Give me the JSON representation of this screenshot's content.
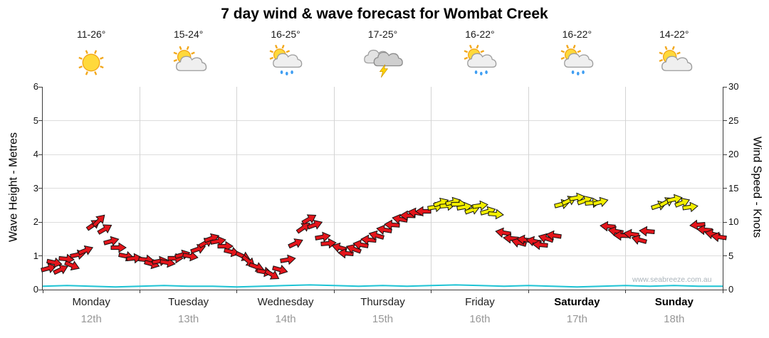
{
  "title": "7 day wind & wave forecast for Wombat Creek",
  "watermark": "www.seabreeze.com.au",
  "axes": {
    "left_label": "Wave Height - Metres",
    "right_label": "Wind Speed - Knots",
    "left_ticks": [
      0,
      1,
      2,
      3,
      4,
      5,
      6
    ],
    "right_ticks": [
      0,
      5,
      10,
      15,
      20,
      25,
      30
    ],
    "left_max": 6,
    "right_max": 30
  },
  "days": [
    {
      "name": "Monday",
      "date": "12th",
      "temp": "11-26°",
      "icon": "sunny",
      "weekend": false
    },
    {
      "name": "Tuesday",
      "date": "13th",
      "temp": "15-24°",
      "icon": "partly-cloudy",
      "weekend": false
    },
    {
      "name": "Wednesday",
      "date": "14th",
      "temp": "16-25°",
      "icon": "sun-cloud-rain",
      "weekend": false
    },
    {
      "name": "Thursday",
      "date": "15th",
      "temp": "17-25°",
      "icon": "thunderstorm",
      "weekend": false
    },
    {
      "name": "Friday",
      "date": "16th",
      "temp": "16-22°",
      "icon": "sun-cloud-rain",
      "weekend": false
    },
    {
      "name": "Saturday",
      "date": "17th",
      "temp": "16-22°",
      "icon": "sun-cloud-rain",
      "weekend": true
    },
    {
      "name": "Sunday",
      "date": "18th",
      "temp": "14-22°",
      "icon": "partly-cloudy",
      "weekend": true
    }
  ],
  "chart_data": {
    "type": "scatter",
    "title": "7 day wind & wave forecast for Wombat Creek",
    "x_axis": {
      "unit": "days from Monday 00:00",
      "range": [
        0,
        7
      ],
      "tick_labels": [
        "Monday 12th",
        "Tuesday 13th",
        "Wednesday 14th",
        "Thursday 15th",
        "Friday 16th",
        "Saturday 17th",
        "Sunday 18th"
      ]
    },
    "y_left": {
      "label": "Wave Height - Metres",
      "range": [
        0,
        6
      ]
    },
    "y_right": {
      "label": "Wind Speed - Knots",
      "range": [
        0,
        30
      ]
    },
    "grid": true,
    "colors": {
      "red": "#e3151b",
      "yellow": "#f2ee00",
      "wave": "#1ec3d4"
    },
    "wind_point_format": "[t_days, knots, arrow_dir_deg_cw_from_east, color r|y]",
    "wind": [
      [
        0.06,
        3.2,
        -15,
        "r"
      ],
      [
        0.12,
        4.0,
        12,
        "r"
      ],
      [
        0.18,
        3.0,
        -25,
        "r"
      ],
      [
        0.24,
        4.5,
        5,
        "r"
      ],
      [
        0.3,
        3.6,
        22,
        "r"
      ],
      [
        0.36,
        5.2,
        -12,
        "r"
      ],
      [
        0.44,
        5.8,
        -22,
        "r"
      ],
      [
        0.52,
        9.6,
        -35,
        "r"
      ],
      [
        0.58,
        10.2,
        -45,
        "r"
      ],
      [
        0.64,
        9.0,
        -30,
        "r"
      ],
      [
        0.7,
        7.2,
        -15,
        "r"
      ],
      [
        0.78,
        6.2,
        0,
        "r"
      ],
      [
        0.86,
        5.0,
        12,
        "r"
      ],
      [
        0.94,
        4.6,
        -6,
        "r"
      ],
      [
        1.06,
        4.4,
        6,
        "r"
      ],
      [
        1.12,
        3.8,
        16,
        "r"
      ],
      [
        1.2,
        4.2,
        -10,
        "r"
      ],
      [
        1.28,
        4.0,
        10,
        "r"
      ],
      [
        1.36,
        4.6,
        0,
        "r"
      ],
      [
        1.44,
        5.2,
        -16,
        "r"
      ],
      [
        1.52,
        5.0,
        10,
        "r"
      ],
      [
        1.6,
        6.0,
        -20,
        "r"
      ],
      [
        1.68,
        7.0,
        -30,
        "r"
      ],
      [
        1.74,
        7.6,
        -20,
        "r"
      ],
      [
        1.8,
        7.2,
        -10,
        "r"
      ],
      [
        1.88,
        6.4,
        0,
        "r"
      ],
      [
        1.94,
        5.6,
        14,
        "r"
      ],
      [
        2.06,
        5.0,
        25,
        "r"
      ],
      [
        2.12,
        4.2,
        40,
        "r"
      ],
      [
        2.2,
        3.4,
        20,
        "r"
      ],
      [
        2.28,
        2.6,
        10,
        "r"
      ],
      [
        2.36,
        2.2,
        30,
        "r"
      ],
      [
        2.44,
        3.0,
        15,
        "r"
      ],
      [
        2.52,
        4.4,
        -10,
        "r"
      ],
      [
        2.6,
        6.8,
        -25,
        "r"
      ],
      [
        2.68,
        9.2,
        -35,
        "r"
      ],
      [
        2.74,
        10.4,
        -30,
        "r"
      ],
      [
        2.8,
        9.6,
        -20,
        "r"
      ],
      [
        2.88,
        7.8,
        -10,
        "r"
      ],
      [
        2.94,
        6.8,
        -5,
        "r"
      ],
      [
        3.06,
        6.2,
        195,
        "r"
      ],
      [
        3.12,
        5.4,
        185,
        "r"
      ],
      [
        3.2,
        6.0,
        200,
        "r"
      ],
      [
        3.28,
        6.6,
        190,
        "r"
      ],
      [
        3.36,
        7.4,
        185,
        "r"
      ],
      [
        3.44,
        8.0,
        196,
        "r"
      ],
      [
        3.52,
        8.8,
        190,
        "r"
      ],
      [
        3.6,
        9.6,
        184,
        "r"
      ],
      [
        3.68,
        10.4,
        190,
        "r"
      ],
      [
        3.76,
        11.0,
        182,
        "r"
      ],
      [
        3.84,
        11.4,
        188,
        "r"
      ],
      [
        3.92,
        11.6,
        180,
        "r"
      ],
      [
        4.04,
        12.2,
        -10,
        "y"
      ],
      [
        4.1,
        12.8,
        -20,
        "y"
      ],
      [
        4.16,
        12.4,
        -5,
        "y"
      ],
      [
        4.22,
        13.0,
        -15,
        "y"
      ],
      [
        4.28,
        12.6,
        0,
        "y"
      ],
      [
        4.34,
        12.2,
        -10,
        "y"
      ],
      [
        4.42,
        11.8,
        -20,
        "y"
      ],
      [
        4.5,
        12.4,
        -8,
        "y"
      ],
      [
        4.58,
        11.6,
        -15,
        "y"
      ],
      [
        4.66,
        11.2,
        5,
        "y"
      ],
      [
        4.74,
        8.4,
        190,
        "r"
      ],
      [
        4.82,
        7.6,
        185,
        "r"
      ],
      [
        4.9,
        7.0,
        196,
        "r"
      ],
      [
        4.96,
        7.4,
        188,
        "r"
      ],
      [
        5.06,
        7.2,
        192,
        "r"
      ],
      [
        5.12,
        6.6,
        185,
        "r"
      ],
      [
        5.18,
        7.6,
        198,
        "r"
      ],
      [
        5.26,
        8.0,
        188,
        "r"
      ],
      [
        5.34,
        12.6,
        -15,
        "y"
      ],
      [
        5.42,
        13.2,
        -25,
        "y"
      ],
      [
        5.5,
        13.6,
        -10,
        "y"
      ],
      [
        5.58,
        13.2,
        -20,
        "y"
      ],
      [
        5.66,
        12.8,
        -5,
        "y"
      ],
      [
        5.74,
        13.0,
        -15,
        "y"
      ],
      [
        5.82,
        9.4,
        185,
        "r"
      ],
      [
        5.9,
        8.6,
        190,
        "r"
      ],
      [
        5.96,
        8.0,
        182,
        "r"
      ],
      [
        6.06,
        8.2,
        188,
        "r"
      ],
      [
        6.14,
        7.4,
        196,
        "r"
      ],
      [
        6.22,
        8.6,
        185,
        "r"
      ],
      [
        6.34,
        12.4,
        -18,
        "y"
      ],
      [
        6.42,
        13.0,
        -28,
        "y"
      ],
      [
        6.5,
        13.4,
        -12,
        "y"
      ],
      [
        6.58,
        12.8,
        -22,
        "y"
      ],
      [
        6.66,
        12.2,
        -8,
        "y"
      ],
      [
        6.74,
        9.6,
        175,
        "r"
      ],
      [
        6.82,
        8.8,
        185,
        "r"
      ],
      [
        6.9,
        8.2,
        192,
        "r"
      ],
      [
        6.96,
        7.8,
        188,
        "r"
      ]
    ],
    "wave_height_m": {
      "t_step_days": 0.25,
      "values": [
        0.1,
        0.12,
        0.1,
        0.08,
        0.1,
        0.12,
        0.1,
        0.1,
        0.08,
        0.1,
        0.12,
        0.14,
        0.12,
        0.1,
        0.12,
        0.1,
        0.12,
        0.14,
        0.12,
        0.1,
        0.12,
        0.1,
        0.08,
        0.1,
        0.12,
        0.1,
        0.12,
        0.1,
        0.1
      ]
    }
  }
}
